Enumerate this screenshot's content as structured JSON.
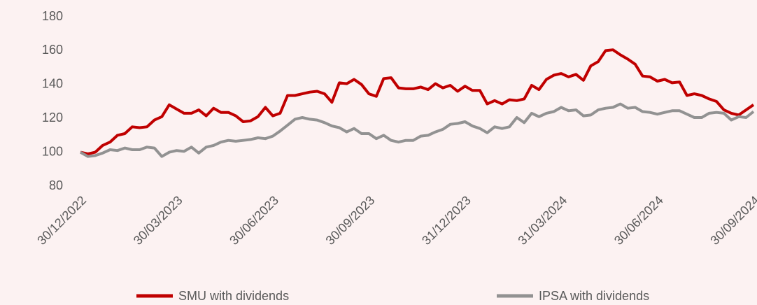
{
  "chart_data": {
    "type": "line",
    "categories": [
      "30/12/2022",
      null,
      null,
      null,
      null,
      null,
      null,
      null,
      null,
      null,
      null,
      null,
      null,
      "30/03/2023",
      null,
      null,
      null,
      null,
      null,
      null,
      null,
      null,
      null,
      null,
      null,
      null,
      "30/06/2023",
      null,
      null,
      null,
      null,
      null,
      null,
      null,
      null,
      null,
      null,
      null,
      null,
      "30/09/2023",
      null,
      null,
      null,
      null,
      null,
      null,
      null,
      null,
      null,
      null,
      null,
      null,
      "31/12/2023",
      null,
      null,
      null,
      null,
      null,
      null,
      null,
      null,
      null,
      null,
      null,
      null,
      "31/03/2024",
      null,
      null,
      null,
      null,
      null,
      null,
      null,
      null,
      null,
      null,
      null,
      null,
      "30/06/2024",
      null,
      null,
      null,
      null,
      null,
      null,
      null,
      null,
      null,
      null,
      null,
      null,
      "30/09/2024"
    ],
    "series": [
      {
        "name": "SMU with dividends",
        "color": "#c00000",
        "values": [
          100,
          99,
          100,
          104,
          106,
          110,
          111,
          115,
          114.5,
          115,
          119,
          121,
          128,
          125.5,
          123,
          123,
          125,
          121.5,
          126,
          123.5,
          123.5,
          121.5,
          118,
          118.5,
          121,
          126.5,
          121.5,
          123,
          133.5,
          133.5,
          134.5,
          135.5,
          136,
          134.5,
          129.5,
          141,
          140.5,
          143,
          140,
          134.5,
          133,
          143.5,
          144,
          138,
          137.5,
          137.5,
          138.5,
          137,
          140.5,
          138,
          139.5,
          136,
          139,
          136.5,
          136.5,
          128.5,
          130.5,
          128.5,
          131,
          130.5,
          131.5,
          139.5,
          137,
          143,
          145.5,
          146.5,
          144.5,
          146,
          142.5,
          151,
          153.5,
          160,
          160.5,
          157.5,
          155,
          152,
          145,
          144.5,
          142,
          143,
          141,
          141.5,
          133.5,
          134.5,
          133.5,
          131.5,
          130,
          125,
          123,
          122,
          125,
          128
        ]
      },
      {
        "name": "IPSA with dividends",
        "color": "#929292",
        "values": [
          100,
          97.5,
          98,
          99.5,
          101.5,
          101,
          102.5,
          101.5,
          101.5,
          103,
          102.5,
          97.5,
          100,
          101,
          100.5,
          103,
          99.5,
          103,
          104,
          106,
          107,
          106.5,
          107,
          107.5,
          108.5,
          108,
          109.5,
          112.5,
          116,
          119.5,
          120.5,
          119.5,
          119,
          117.5,
          115.5,
          114.5,
          112,
          114,
          111,
          111,
          108,
          110,
          107,
          106,
          107,
          107,
          109.5,
          110,
          112,
          113.5,
          116.5,
          117,
          118,
          115.5,
          114,
          111.5,
          115,
          114,
          115,
          120.5,
          117.5,
          123,
          121,
          123,
          124,
          126.5,
          124.5,
          125,
          121.5,
          122,
          125,
          126,
          126.5,
          128.5,
          126,
          126.5,
          124,
          123.5,
          122.5,
          123.5,
          124.5,
          124.5,
          122.5,
          120.5,
          120.5,
          123,
          123.5,
          123,
          119,
          121,
          120.5,
          124
        ]
      }
    ],
    "ylim": [
      80,
      180
    ],
    "yticks": [
      80,
      100,
      120,
      140,
      160,
      180
    ]
  }
}
